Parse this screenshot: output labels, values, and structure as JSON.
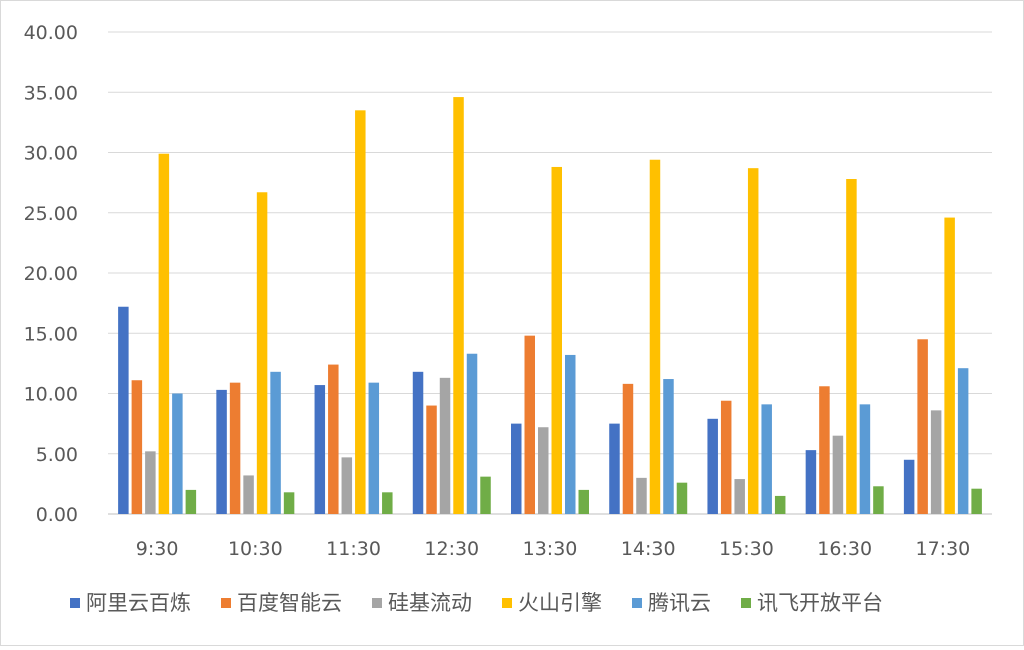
{
  "chart_data": {
    "type": "bar",
    "title": "",
    "xlabel": "",
    "ylabel": "",
    "ylim": [
      0,
      40
    ],
    "y_ticks": [
      "0.00",
      "5.00",
      "10.00",
      "15.00",
      "20.00",
      "25.00",
      "30.00",
      "35.00",
      "40.00"
    ],
    "y_tick_values": [
      0,
      5,
      10,
      15,
      20,
      25,
      30,
      35,
      40
    ],
    "categories": [
      "9:30",
      "10:30",
      "11:30",
      "12:30",
      "13:30",
      "14:30",
      "15:30",
      "16:30",
      "17:30"
    ],
    "series": [
      {
        "name": "阿里云百炼",
        "color": "#4472C4",
        "values": [
          17.2,
          10.3,
          10.7,
          11.8,
          7.5,
          7.5,
          7.9,
          5.3,
          4.5
        ]
      },
      {
        "name": "百度智能云",
        "color": "#ED7D31",
        "values": [
          11.1,
          10.9,
          12.4,
          9.0,
          14.8,
          10.8,
          9.4,
          10.6,
          14.5
        ]
      },
      {
        "name": "硅基流动",
        "color": "#A5A5A5",
        "values": [
          5.2,
          3.2,
          4.7,
          11.3,
          7.2,
          3.0,
          2.9,
          6.5,
          8.6
        ]
      },
      {
        "name": "火山引擎",
        "color": "#FFC000",
        "values": [
          29.9,
          26.7,
          33.5,
          34.6,
          28.8,
          29.4,
          28.7,
          27.8,
          24.6
        ]
      },
      {
        "name": "腾讯云",
        "color": "#5B9BD5",
        "values": [
          10.0,
          11.8,
          10.9,
          13.3,
          13.2,
          11.2,
          9.1,
          9.1,
          12.1
        ]
      },
      {
        "name": "讯飞开放平台",
        "color": "#70AD47",
        "values": [
          2.0,
          1.8,
          1.8,
          3.1,
          2.0,
          2.6,
          1.5,
          2.3,
          2.1
        ]
      }
    ],
    "grid": true,
    "legend_position": "bottom"
  }
}
